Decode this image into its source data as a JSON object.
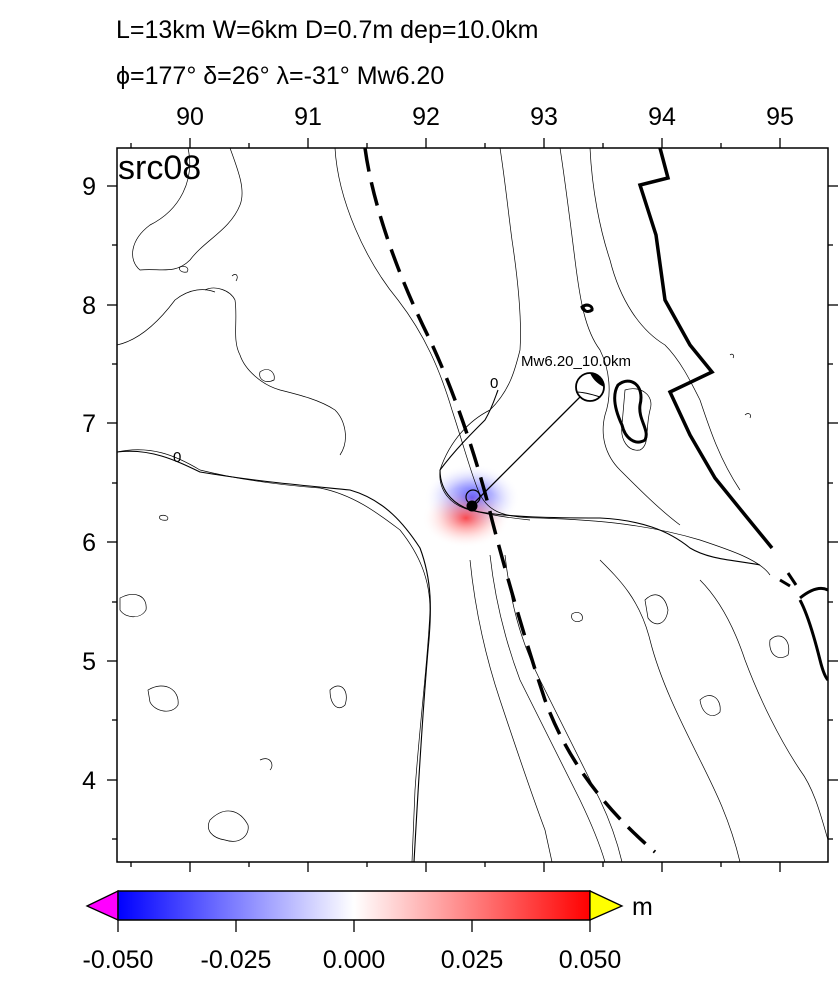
{
  "header": {
    "line1": "L=13km W=6km D=0.7m dep=10.0km",
    "line2": "ϕ=177° δ=26° λ=-31° Mw6.20"
  },
  "panel_label": "src08",
  "axes": {
    "x_ticks": [
      "90",
      "91",
      "92",
      "93",
      "94",
      "95"
    ],
    "y_ticks": [
      "9",
      "8",
      "7",
      "6",
      "5",
      "4"
    ]
  },
  "annotations": {
    "mechanism_label": "Mw6.20_10.0km",
    "contour_zero_1": "0",
    "contour_zero_2": "0"
  },
  "colorbar": {
    "unit": "m",
    "tick_labels": [
      "-0.050",
      "-0.025",
      "0.000",
      "0.025",
      "0.050"
    ],
    "colors": {
      "neg": "#0000ff",
      "mid": "#ffffff",
      "pos": "#ff0000",
      "under": "#ff00ff",
      "over": "#ffff00"
    }
  }
}
